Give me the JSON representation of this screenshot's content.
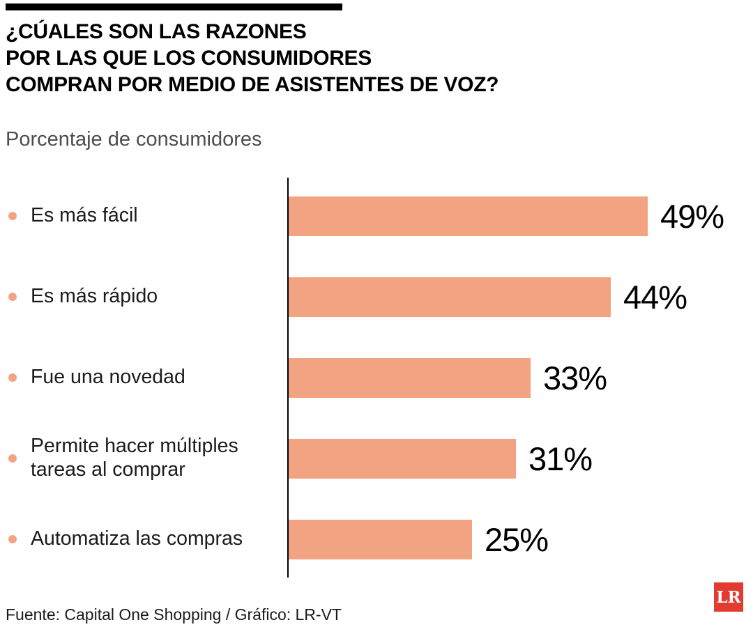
{
  "colors": {
    "accent": "#f2a382",
    "logo_red": "#e23b30",
    "subtitle_gray": "#4d4d4f"
  },
  "header": {
    "title_lines": [
      "¿CÚALES SON LAS RAZONES",
      "POR LAS QUE LOS CONSUMIDORES",
      "COMPRAN POR MEDIO DE ASISTENTES DE VOZ?"
    ],
    "subtitle": "Porcentaje de consumidores"
  },
  "chart_data": {
    "type": "bar",
    "orientation": "horizontal",
    "title": "¿Cúales son las razones por las que los consumidores compran por medio de asistentes de voz?",
    "xlabel": "Porcentaje de consumidores",
    "ylabel": "",
    "categories": [
      "Es más fácil",
      "Es más rápido",
      "Fue una novedad",
      "Permite hacer múltiples tareas al comprar",
      "Automatiza las compras"
    ],
    "values": [
      49,
      44,
      33,
      31,
      25
    ],
    "value_labels": [
      "49%",
      "44%",
      "33%",
      "31%",
      "25%"
    ],
    "xlim": [
      0,
      49
    ],
    "bar_color": "#f2a382",
    "grid": false,
    "legend": false
  },
  "footer": {
    "source": "Fuente: Capital One Shopping  / Gráfico: LR-VT",
    "logo_text": "LR"
  }
}
